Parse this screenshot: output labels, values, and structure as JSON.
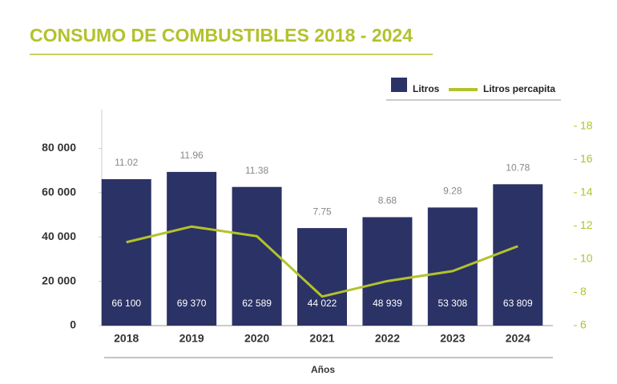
{
  "chart_data": {
    "type": "bar",
    "title": "CONSUMO DE COMBUSTIBLES 2018 - 2024",
    "categories": [
      "2018",
      "2019",
      "2020",
      "2021",
      "2022",
      "2023",
      "2024"
    ],
    "x_label": "Años",
    "series": [
      {
        "name": "Litros",
        "type": "bar",
        "color": "#2b3266",
        "values": [
          66100,
          69370,
          62589,
          44022,
          48939,
          53308,
          63809
        ],
        "value_labels": [
          "66 100",
          "69 370",
          "62 589",
          "44 022",
          "48 939",
          "53 308",
          "63 809"
        ]
      },
      {
        "name": "Litros percapita",
        "type": "line",
        "axis": "y2",
        "color": "#b3c22b",
        "values": [
          11.02,
          11.96,
          11.38,
          7.75,
          8.68,
          9.28,
          10.78
        ]
      }
    ],
    "ylim": [
      0,
      97500
    ],
    "yticks": [
      0,
      {
        "value": 20000,
        "label": "20 000"
      },
      {
        "value": 40000,
        "label": "40 000"
      },
      {
        "value": 60000,
        "label": "60 000"
      },
      {
        "value": 80000,
        "label": "80 000"
      }
    ],
    "y2lim": [
      6,
      19
    ],
    "y2ticks": [
      6,
      8,
      10,
      12,
      14,
      16,
      18
    ],
    "legend": "top-right",
    "grid": false
  }
}
